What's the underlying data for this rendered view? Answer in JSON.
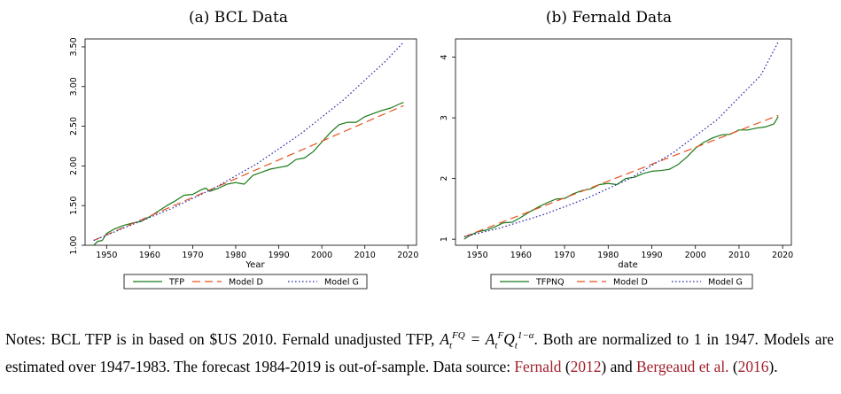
{
  "chart_data": [
    {
      "type": "line",
      "title": "(a) BCL Data",
      "xlabel": "Year",
      "ylabel": "",
      "xlim": [
        1947,
        2019
      ],
      "ylim": [
        1.0,
        3.6
      ],
      "xticks": [
        "1950",
        "1960",
        "1970",
        "1980",
        "1990",
        "2000",
        "2010",
        "2020"
      ],
      "yticks": [
        "1.00",
        "1.50",
        "2.00",
        "2.50",
        "3.00",
        "3.50"
      ],
      "grid": false,
      "legend_position": "bottom",
      "series": [
        {
          "name": "TFP",
          "style": "solid",
          "color": "#1a7a1a",
          "x": [
            1947,
            1948,
            1949,
            1950,
            1952,
            1954,
            1956,
            1958,
            1960,
            1962,
            1964,
            1966,
            1968,
            1970,
            1972,
            1973,
            1974,
            1976,
            1978,
            1980,
            1981,
            1982,
            1984,
            1986,
            1988,
            1990,
            1992,
            1994,
            1996,
            1998,
            2000,
            2002,
            2004,
            2006,
            2008,
            2010,
            2012,
            2014,
            2016,
            2018,
            2019
          ],
          "y": [
            1.0,
            1.05,
            1.06,
            1.15,
            1.21,
            1.25,
            1.28,
            1.3,
            1.36,
            1.43,
            1.5,
            1.56,
            1.63,
            1.64,
            1.7,
            1.72,
            1.68,
            1.72,
            1.77,
            1.79,
            1.78,
            1.77,
            1.88,
            1.92,
            1.96,
            1.98,
            2.0,
            2.08,
            2.1,
            2.18,
            2.3,
            2.42,
            2.52,
            2.55,
            2.55,
            2.62,
            2.66,
            2.7,
            2.73,
            2.78,
            2.8
          ]
        },
        {
          "name": "Model D",
          "style": "dashed",
          "color": "#e8521f",
          "x": [
            1947,
            2019
          ],
          "y": [
            1.06,
            2.76
          ]
        },
        {
          "name": "Model G",
          "style": "dotted",
          "color": "#2a2aa8",
          "x": [
            1947,
            1955,
            1965,
            1975,
            1985,
            1995,
            2005,
            2015,
            2019
          ],
          "y": [
            1.06,
            1.24,
            1.46,
            1.72,
            2.03,
            2.4,
            2.83,
            3.33,
            3.56
          ]
        }
      ]
    },
    {
      "type": "line",
      "title": "(b) Fernald Data",
      "xlabel": "date",
      "ylabel": "",
      "xlim": [
        1947,
        2019
      ],
      "ylim": [
        1.0,
        4.3
      ],
      "xticks": [
        "1950",
        "1960",
        "1970",
        "1980",
        "1990",
        "2000",
        "2010",
        "2020"
      ],
      "yticks": [
        "1",
        "2",
        "3",
        "4"
      ],
      "grid": false,
      "legend_position": "bottom",
      "series": [
        {
          "name": "TFPNQ",
          "style": "solid",
          "color": "#1a7a1a",
          "x": [
            1947,
            1948,
            1950,
            1952,
            1954,
            1956,
            1958,
            1960,
            1962,
            1964,
            1966,
            1968,
            1970,
            1972,
            1974,
            1976,
            1978,
            1980,
            1982,
            1984,
            1986,
            1988,
            1990,
            1992,
            1994,
            1996,
            1998,
            2000,
            2002,
            2004,
            2006,
            2008,
            2010,
            2012,
            2014,
            2016,
            2018,
            2019
          ],
          "y": [
            1.0,
            1.05,
            1.12,
            1.15,
            1.2,
            1.27,
            1.28,
            1.36,
            1.45,
            1.53,
            1.6,
            1.66,
            1.67,
            1.75,
            1.8,
            1.83,
            1.9,
            1.92,
            1.9,
            2.0,
            2.02,
            2.08,
            2.12,
            2.13,
            2.15,
            2.23,
            2.35,
            2.5,
            2.6,
            2.67,
            2.72,
            2.73,
            2.8,
            2.8,
            2.83,
            2.85,
            2.9,
            3.02
          ]
        },
        {
          "name": "Model D",
          "style": "dashed",
          "color": "#e8521f",
          "x": [
            1947,
            2019
          ],
          "y": [
            1.04,
            3.04
          ]
        },
        {
          "name": "Model G",
          "style": "dotted",
          "color": "#2a2aa8",
          "x": [
            1947,
            1955,
            1965,
            1975,
            1985,
            1995,
            2005,
            2015,
            2019
          ],
          "y": [
            1.04,
            1.18,
            1.4,
            1.67,
            2.0,
            2.43,
            2.97,
            3.7,
            4.25
          ]
        }
      ]
    }
  ],
  "notes": {
    "part1": "Notes: BCL TFP is in based on $US 2010. Fernald unadjusted TFP, ",
    "part2": ". Both are normalized to 1 in 1947. Models are estimated over 1947-1983. The forecast 1984-2019 is out-of-sample. Data source: ",
    "cite1_name": "Fernald",
    "cite1_year": "2012",
    "and": "and",
    "cite2_name": "Bergeaud et al.",
    "cite2_year": "2016",
    "end": "."
  }
}
